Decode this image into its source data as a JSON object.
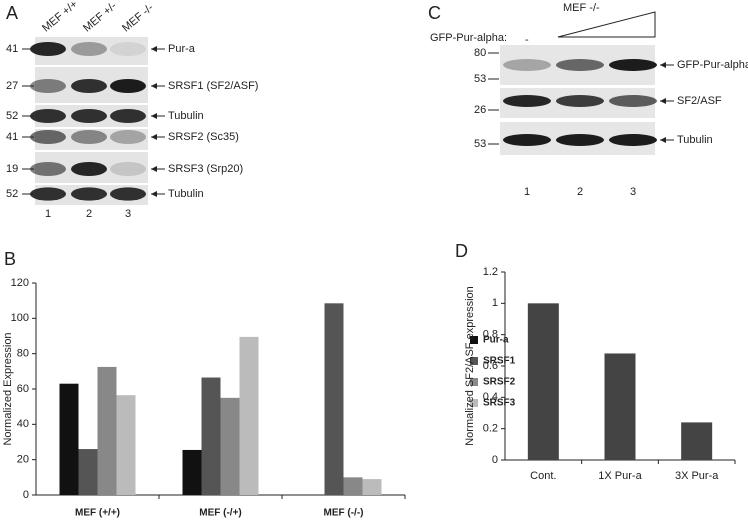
{
  "panel_labels": [
    "A",
    "B",
    "C",
    "D"
  ],
  "blot_a": {
    "lanes": [
      "MEF +/+",
      "MEF +/-",
      "MEF -/-"
    ],
    "lane_numbers": [
      "1",
      "2",
      "3"
    ],
    "rows": [
      {
        "marker": "41",
        "label": "Pur-a"
      },
      {
        "marker": "27",
        "label": "SRSF1 (SF2/ASF)"
      },
      {
        "marker": "52",
        "label": "Tubulin"
      },
      {
        "marker": "41",
        "label": "SRSF2 (Sc35)"
      },
      {
        "marker": "19",
        "label": "SRSF3 (Srp20)"
      },
      {
        "marker": "52",
        "label": "Tubulin"
      }
    ]
  },
  "blot_c": {
    "cell_line": "MEF -/-",
    "treatment": "GFP-Pur-alpha:",
    "control_lane": "-",
    "lane_numbers": [
      "1",
      "2",
      "3"
    ],
    "rows": [
      {
        "markers": [
          "80",
          "53"
        ],
        "label": "GFP-Pur-alpha"
      },
      {
        "markers": [
          "26"
        ],
        "label": "SF2/ASF"
      },
      {
        "markers": [
          "53"
        ],
        "label": "Tubulin"
      }
    ]
  },
  "chart_data": [
    {
      "type": "bar",
      "ylabel": "Normalized Expression",
      "categories": [
        "MEF (+/+)",
        "MEF (-/+)",
        "MEF (-/-)"
      ],
      "series": [
        {
          "name": "Pur-a",
          "color": "#111111",
          "values": [
            63,
            25.5,
            0
          ]
        },
        {
          "name": "SRSF1",
          "color": "#555555",
          "values": [
            26,
            66.5,
            108.5
          ]
        },
        {
          "name": "SRSF2",
          "color": "#888888",
          "values": [
            72.5,
            55,
            10
          ]
        },
        {
          "name": "SRSF3",
          "color": "#bbbbbb",
          "values": [
            56.5,
            89.5,
            9
          ]
        }
      ],
      "ylim": [
        0,
        120
      ],
      "yticks": [
        0,
        20,
        40,
        60,
        80,
        100,
        120
      ],
      "legend": "right"
    },
    {
      "type": "bar",
      "ylabel": "Normalized SF2/ASF expression",
      "categories": [
        "Cont.",
        "1X Pur-a",
        "3X Pur-a"
      ],
      "series": [
        {
          "name": null,
          "color": "#444444",
          "values": [
            1,
            0.68,
            0.24
          ]
        }
      ],
      "ylim": [
        0,
        1.2
      ],
      "yticks": [
        0,
        0.2,
        0.4,
        0.6,
        0.8,
        1,
        1.2
      ]
    }
  ]
}
